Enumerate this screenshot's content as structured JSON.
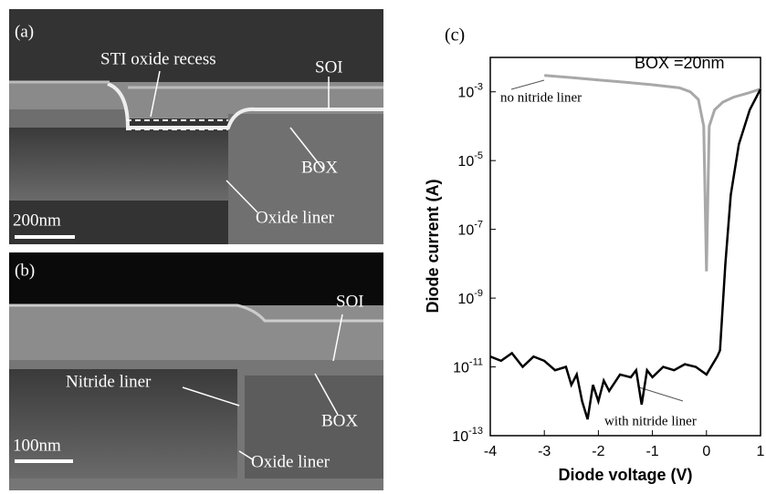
{
  "panels": [
    {
      "label": "(a)",
      "scale": "200nm",
      "annotations": [
        "STI oxide recess",
        "SOI",
        "BOX",
        "Oxide liner"
      ]
    },
    {
      "label": "(b)",
      "scale": "100nm",
      "annotations": [
        "SOI",
        "Nitride liner",
        "BOX",
        "Oxide liner"
      ]
    }
  ],
  "chart_data": {
    "type": "line",
    "panel_label": "(c)",
    "annotation": "BOX =20nm",
    "x_label": "Diode voltage (V)",
    "y_label": "Diode current (A)",
    "log_y": true,
    "xlim": [
      -4,
      1
    ],
    "xticks": [
      -4,
      -3,
      -2,
      -1,
      0,
      1
    ],
    "ylim": [
      1e-13,
      0.01
    ],
    "yticks": [
      {
        "value": 1e-13,
        "label": "10",
        "exponent": "-13"
      },
      {
        "value": 1e-11,
        "label": "10",
        "exponent": "-11"
      },
      {
        "value": 1e-09,
        "label": "10",
        "exponent": "-9"
      },
      {
        "value": 1e-07,
        "label": "10",
        "exponent": "-7"
      },
      {
        "value": 1e-05,
        "label": "10",
        "exponent": "-5"
      },
      {
        "value": 0.001,
        "label": "10",
        "exponent": "-3"
      }
    ],
    "series": [
      {
        "name": "no nitride liner",
        "color": "#a8a8a8",
        "x": [
          -3,
          -2.5,
          -2,
          -1.5,
          -1,
          -0.5,
          -0.3,
          -0.15,
          -0.05,
          0,
          0.05,
          0.15,
          0.3,
          0.5,
          0.75,
          1
        ],
        "values": [
          0.003,
          0.0026,
          0.0022,
          0.0019,
          0.0016,
          0.0013,
          0.001,
          0.0006,
          0.0001,
          6e-09,
          0.0001,
          0.0003,
          0.0005,
          0.0007,
          0.0009,
          0.0012
        ]
      },
      {
        "name": "with nitride liner",
        "color": "#000000",
        "x": [
          -4,
          -3.8,
          -3.6,
          -3.4,
          -3.2,
          -3,
          -2.8,
          -2.6,
          -2.5,
          -2.4,
          -2.3,
          -2.2,
          -2.1,
          -2,
          -1.9,
          -1.8,
          -1.6,
          -1.4,
          -1.3,
          -1.2,
          -1.1,
          -1,
          -0.8,
          -0.6,
          -0.4,
          -0.2,
          0,
          0.2,
          0.25,
          0.35,
          0.45,
          0.6,
          0.8,
          1
        ],
        "values": [
          2e-11,
          1.5e-11,
          2.5e-11,
          1e-11,
          2e-11,
          1.5e-11,
          8e-12,
          1e-11,
          3e-12,
          6e-12,
          1e-12,
          3e-13,
          3e-12,
          1e-12,
          4e-12,
          2e-12,
          6e-12,
          5e-12,
          8e-12,
          8e-13,
          8e-12,
          5e-12,
          1e-11,
          8e-12,
          1.2e-11,
          1e-11,
          6e-12,
          2e-11,
          3e-11,
          1e-08,
          1e-06,
          3e-05,
          0.0003,
          0.0012
        ]
      }
    ]
  }
}
